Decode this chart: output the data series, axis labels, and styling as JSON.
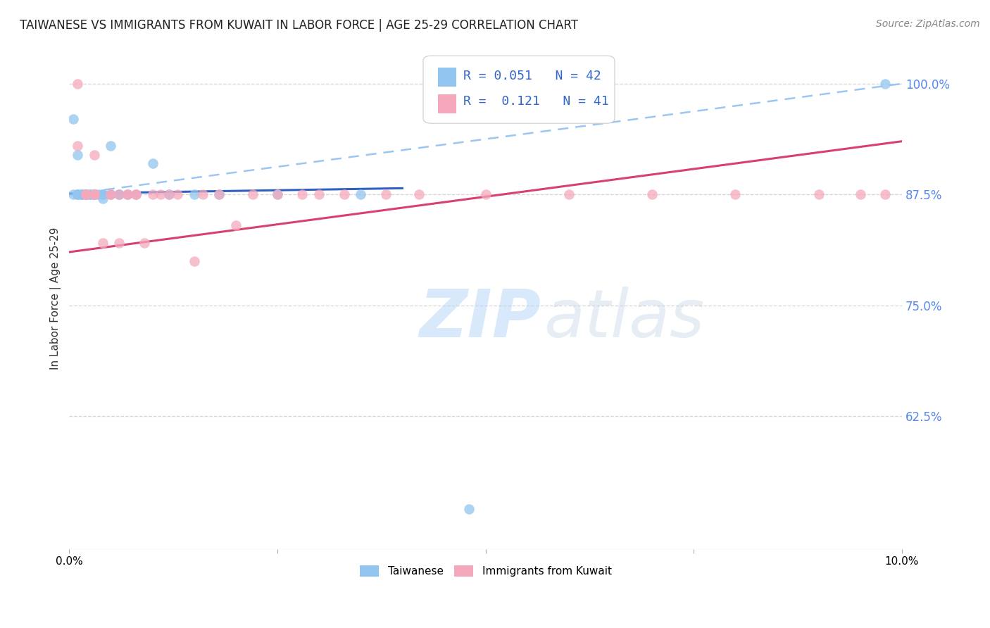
{
  "title": "TAIWANESE VS IMMIGRANTS FROM KUWAIT IN LABOR FORCE | AGE 25-29 CORRELATION CHART",
  "source": "Source: ZipAtlas.com",
  "ylabel": "In Labor Force | Age 25-29",
  "ytick_labels": [
    "62.5%",
    "75.0%",
    "87.5%",
    "100.0%"
  ],
  "ytick_values": [
    0.625,
    0.75,
    0.875,
    1.0
  ],
  "xlim": [
    0.0,
    0.1
  ],
  "ylim": [
    0.475,
    1.04
  ],
  "legend_r_taiwanese": "0.051",
  "legend_n_taiwanese": "42",
  "legend_r_kuwait": "0.121",
  "legend_n_kuwait": "41",
  "taiwanese_color": "#92C5F0",
  "kuwait_color": "#F5A8BC",
  "trend_taiwanese_color": "#3060C0",
  "trend_kuwait_color": "#D84070",
  "dashed_line_color": "#90C0F0",
  "watermark_zip": "ZIP",
  "watermark_atlas": "atlas",
  "taiwanese_x": [
    0.0005,
    0.0005,
    0.001,
    0.001,
    0.001,
    0.001,
    0.0015,
    0.0015,
    0.0015,
    0.002,
    0.002,
    0.002,
    0.002,
    0.002,
    0.002,
    0.0025,
    0.0025,
    0.003,
    0.003,
    0.003,
    0.003,
    0.003,
    0.003,
    0.0035,
    0.004,
    0.004,
    0.004,
    0.004,
    0.005,
    0.005,
    0.006,
    0.006,
    0.007,
    0.008,
    0.01,
    0.012,
    0.015,
    0.018,
    0.025,
    0.035,
    0.048,
    0.098
  ],
  "taiwanese_y": [
    0.875,
    0.96,
    0.875,
    0.875,
    0.875,
    0.92,
    0.875,
    0.875,
    0.875,
    0.875,
    0.875,
    0.875,
    0.875,
    0.875,
    0.875,
    0.875,
    0.875,
    0.875,
    0.875,
    0.875,
    0.875,
    0.875,
    0.875,
    0.875,
    0.875,
    0.875,
    0.87,
    0.875,
    0.875,
    0.93,
    0.875,
    0.875,
    0.875,
    0.875,
    0.91,
    0.875,
    0.875,
    0.875,
    0.875,
    0.875,
    0.52,
    1.0
  ],
  "kuwait_x": [
    0.001,
    0.001,
    0.002,
    0.002,
    0.002,
    0.003,
    0.003,
    0.003,
    0.003,
    0.004,
    0.005,
    0.005,
    0.006,
    0.006,
    0.007,
    0.007,
    0.008,
    0.008,
    0.009,
    0.01,
    0.011,
    0.012,
    0.013,
    0.015,
    0.016,
    0.018,
    0.02,
    0.022,
    0.025,
    0.028,
    0.03,
    0.033,
    0.038,
    0.042,
    0.05,
    0.06,
    0.07,
    0.08,
    0.09,
    0.095,
    0.098
  ],
  "kuwait_y": [
    1.0,
    0.93,
    0.875,
    0.875,
    0.875,
    0.875,
    0.92,
    0.875,
    0.875,
    0.82,
    0.875,
    0.875,
    0.875,
    0.82,
    0.875,
    0.875,
    0.875,
    0.875,
    0.82,
    0.875,
    0.875,
    0.875,
    0.875,
    0.8,
    0.875,
    0.875,
    0.84,
    0.875,
    0.875,
    0.875,
    0.875,
    0.875,
    0.875,
    0.875,
    0.875,
    0.875,
    0.875,
    0.875,
    0.875,
    0.875,
    0.875
  ],
  "background_color": "#ffffff",
  "grid_color": "#cccccc",
  "title_fontsize": 12,
  "axis_fontsize": 11,
  "legend_fontsize": 13
}
